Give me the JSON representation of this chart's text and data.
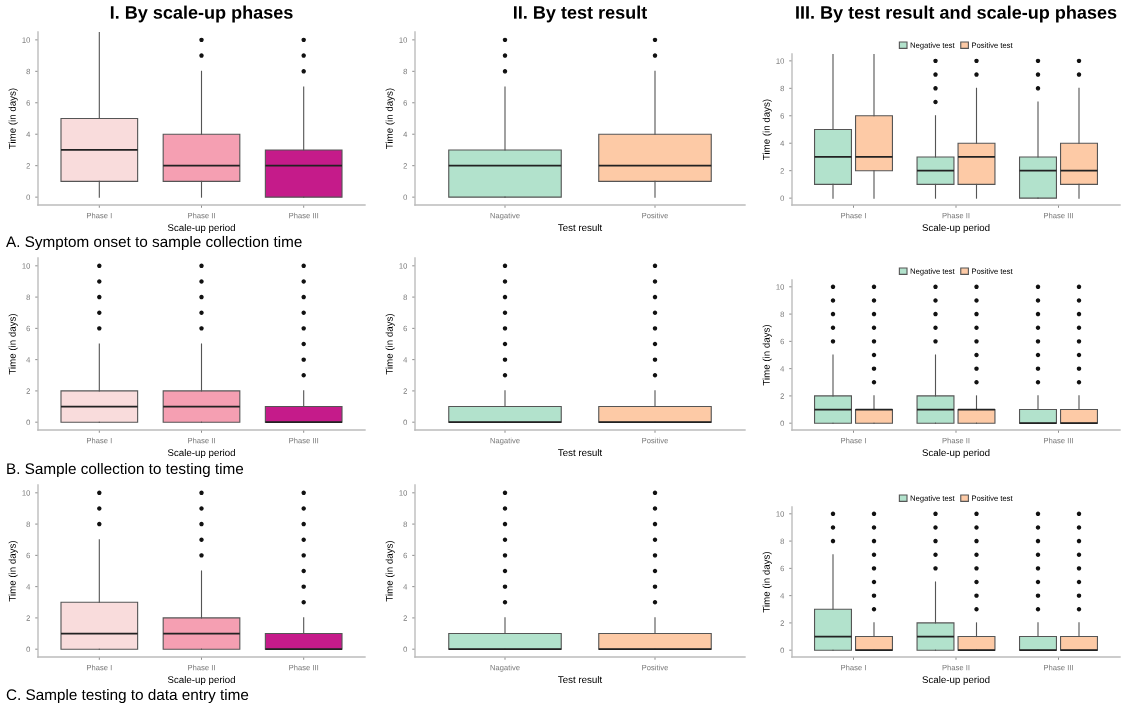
{
  "chart_data": [
    {
      "type": "box",
      "title": "I. By scale-up phases",
      "xlabel": "Scale-up period",
      "ylabel": "Time (in days)",
      "annotations": [
        "A. Symptom onset to sample collection time"
      ],
      "categories": [
        "Phase I",
        "Phase II",
        "Phase III"
      ],
      "colors": [
        "#f9dcdc",
        "#f59fb2",
        "#c51b8a"
      ],
      "ylim": [
        -0.5,
        10.5
      ],
      "yticks": [
        0,
        2,
        4,
        6,
        8,
        10
      ],
      "grid": false,
      "legend": false,
      "boxes": [
        {
          "low": 0,
          "q1": 1,
          "median": 3,
          "q3": 5,
          "high": 10.5
        },
        {
          "low": 0,
          "q1": 1,
          "median": 2,
          "q3": 4,
          "high": 8,
          "outliers": [
            9,
            10
          ]
        },
        {
          "low": 0,
          "q1": 0,
          "median": 2,
          "q3": 3,
          "high": 7,
          "outliers": [
            8,
            9,
            10
          ]
        }
      ]
    },
    {
      "type": "box",
      "title": "II. By test result",
      "xlabel": "Test result",
      "ylabel": "Time (in days)",
      "categories": [
        "Nagative",
        "Positive"
      ],
      "colors": [
        "#b2e2cc",
        "#fdcaa6"
      ],
      "ylim": [
        -0.5,
        10.5
      ],
      "yticks": [
        0,
        2,
        4,
        6,
        8,
        10
      ],
      "grid": false,
      "legend": false,
      "boxes": [
        {
          "low": 0,
          "q1": 0,
          "median": 2,
          "q3": 3,
          "high": 7,
          "outliers": [
            8,
            9,
            10
          ]
        },
        {
          "low": 0,
          "q1": 1,
          "median": 2,
          "q3": 4,
          "high": 8,
          "outliers": [
            9,
            10
          ]
        }
      ]
    },
    {
      "type": "box",
      "title": "III. By test result and scale-up phases",
      "xlabel": "Scale-up period",
      "ylabel": "Time (in days)",
      "categories": [
        "Phase I",
        "Phase II",
        "Phase III"
      ],
      "ylim": [
        -0.5,
        10.5
      ],
      "yticks": [
        0,
        2,
        4,
        6,
        8,
        10
      ],
      "grid": false,
      "legend": "top",
      "series": [
        {
          "name": "Negative test",
          "color": "#b2e2cc",
          "boxes": [
            {
              "low": 0,
              "q1": 1,
              "median": 3,
              "q3": 5,
              "high": 10.5
            },
            {
              "low": 0,
              "q1": 1,
              "median": 2,
              "q3": 3,
              "high": 6,
              "outliers": [
                7,
                8,
                9,
                10
              ]
            },
            {
              "low": 0,
              "q1": 0,
              "median": 2,
              "q3": 3,
              "high": 7,
              "outliers": [
                8,
                9,
                10
              ]
            }
          ]
        },
        {
          "name": "Positive test",
          "color": "#fdcaa6",
          "boxes": [
            {
              "low": 0,
              "q1": 2,
              "median": 3,
              "q3": 6,
              "high": 10.5
            },
            {
              "low": 0,
              "q1": 1,
              "median": 3,
              "q3": 4,
              "high": 8,
              "outliers": [
                9,
                10
              ]
            },
            {
              "low": 0,
              "q1": 1,
              "median": 2,
              "q3": 4,
              "high": 8,
              "outliers": [
                9,
                10
              ]
            }
          ]
        }
      ]
    },
    {
      "type": "box",
      "xlabel": "Scale-up period",
      "ylabel": "Time (in days)",
      "annotations": [
        "B. Sample collection to testing time"
      ],
      "categories": [
        "Phase I",
        "Phase II",
        "Phase III"
      ],
      "colors": [
        "#f9dcdc",
        "#f59fb2",
        "#c51b8a"
      ],
      "ylim": [
        -0.5,
        10.5
      ],
      "yticks": [
        0,
        2,
        4,
        6,
        8,
        10
      ],
      "grid": false,
      "legend": false,
      "boxes": [
        {
          "low": 0,
          "q1": 0,
          "median": 1,
          "q3": 2,
          "high": 5,
          "outliers": [
            6,
            7,
            8,
            9,
            10
          ]
        },
        {
          "low": 0,
          "q1": 0,
          "median": 1,
          "q3": 2,
          "high": 5,
          "outliers": [
            6,
            7,
            8,
            9,
            10
          ]
        },
        {
          "low": 0,
          "q1": 0,
          "median": 0,
          "q3": 1,
          "high": 2,
          "outliers": [
            3,
            4,
            5,
            6,
            7,
            8,
            9,
            10
          ]
        }
      ]
    },
    {
      "type": "box",
      "xlabel": "Test result",
      "ylabel": "Time (in days)",
      "categories": [
        "Nagative",
        "Positive"
      ],
      "colors": [
        "#b2e2cc",
        "#fdcaa6"
      ],
      "ylim": [
        -0.5,
        10.5
      ],
      "yticks": [
        0,
        2,
        4,
        6,
        8,
        10
      ],
      "grid": false,
      "legend": false,
      "boxes": [
        {
          "low": 0,
          "q1": 0,
          "median": 0,
          "q3": 1,
          "high": 2,
          "outliers": [
            3,
            4,
            5,
            6,
            7,
            8,
            9,
            10
          ]
        },
        {
          "low": 0,
          "q1": 0,
          "median": 0,
          "q3": 1,
          "high": 2,
          "outliers": [
            3,
            4,
            5,
            6,
            7,
            8,
            9,
            10
          ]
        }
      ]
    },
    {
      "type": "box",
      "xlabel": "Scale-up period",
      "ylabel": "Time (in days)",
      "categories": [
        "Phase I",
        "Phase II",
        "Phase III"
      ],
      "ylim": [
        -0.5,
        10.5
      ],
      "yticks": [
        0,
        2,
        4,
        6,
        8,
        10
      ],
      "grid": false,
      "legend": "top",
      "series": [
        {
          "name": "Negative test",
          "color": "#b2e2cc",
          "boxes": [
            {
              "low": 0,
              "q1": 0,
              "median": 1,
              "q3": 2,
              "high": 5,
              "outliers": [
                6,
                7,
                8,
                9,
                10
              ]
            },
            {
              "low": 0,
              "q1": 0,
              "median": 1,
              "q3": 2,
              "high": 5,
              "outliers": [
                6,
                7,
                8,
                9,
                10
              ]
            },
            {
              "low": 0,
              "q1": 0,
              "median": 0,
              "q3": 1,
              "high": 2,
              "outliers": [
                3,
                4,
                5,
                6,
                7,
                8,
                9,
                10
              ]
            }
          ]
        },
        {
          "name": "Positive test",
          "color": "#fdcaa6",
          "boxes": [
            {
              "low": 0,
              "q1": 0,
              "median": 1,
              "q3": 1,
              "high": 2,
              "outliers": [
                3,
                4,
                5,
                6,
                7,
                8,
                9,
                10
              ]
            },
            {
              "low": 0,
              "q1": 0,
              "median": 1,
              "q3": 1,
              "high": 2,
              "outliers": [
                3,
                4,
                5,
                6,
                7,
                8,
                9,
                10
              ]
            },
            {
              "low": 0,
              "q1": 0,
              "median": 0,
              "q3": 1,
              "high": 2,
              "outliers": [
                3,
                4,
                5,
                6,
                7,
                8,
                9,
                10
              ]
            }
          ]
        }
      ]
    },
    {
      "type": "box",
      "xlabel": "Scale-up period",
      "ylabel": "Time (in days)",
      "annotations": [
        "C. Sample testing to data entry time"
      ],
      "categories": [
        "Phase I",
        "Phase II",
        "Phase III"
      ],
      "colors": [
        "#f9dcdc",
        "#f59fb2",
        "#c51b8a"
      ],
      "ylim": [
        -0.5,
        10.5
      ],
      "yticks": [
        0,
        2,
        4,
        6,
        8,
        10
      ],
      "grid": false,
      "legend": false,
      "boxes": [
        {
          "low": 0,
          "q1": 0,
          "median": 1,
          "q3": 3,
          "high": 7,
          "outliers": [
            8,
            9,
            10
          ]
        },
        {
          "low": 0,
          "q1": 0,
          "median": 1,
          "q3": 2,
          "high": 5,
          "outliers": [
            6,
            7,
            8,
            9,
            10
          ]
        },
        {
          "low": 0,
          "q1": 0,
          "median": 0,
          "q3": 1,
          "high": 2,
          "outliers": [
            3,
            4,
            5,
            6,
            7,
            8,
            9,
            10
          ]
        }
      ]
    },
    {
      "type": "box",
      "xlabel": "Test result",
      "ylabel": "Time (in days)",
      "categories": [
        "Nagative",
        "Positive"
      ],
      "colors": [
        "#b2e2cc",
        "#fdcaa6"
      ],
      "ylim": [
        -0.5,
        10.5
      ],
      "yticks": [
        0,
        2,
        4,
        6,
        8,
        10
      ],
      "grid": false,
      "legend": false,
      "boxes": [
        {
          "low": 0,
          "q1": 0,
          "median": 0,
          "q3": 1,
          "high": 2,
          "outliers": [
            3,
            4,
            5,
            6,
            7,
            8,
            9,
            10
          ]
        },
        {
          "low": 0,
          "q1": 0,
          "median": 0,
          "q3": 1,
          "high": 2,
          "outliers": [
            3,
            4,
            5,
            6,
            7,
            8,
            9,
            10
          ]
        }
      ]
    },
    {
      "type": "box",
      "xlabel": "Scale-up period",
      "ylabel": "Time (in days)",
      "categories": [
        "Phase I",
        "Phase II",
        "Phase III"
      ],
      "ylim": [
        -0.5,
        10.5
      ],
      "yticks": [
        0,
        2,
        4,
        6,
        8,
        10
      ],
      "grid": false,
      "legend": "top",
      "series": [
        {
          "name": "Negative test",
          "color": "#b2e2cc",
          "boxes": [
            {
              "low": 0,
              "q1": 0,
              "median": 1,
              "q3": 3,
              "high": 7,
              "outliers": [
                8,
                9,
                10
              ]
            },
            {
              "low": 0,
              "q1": 0,
              "median": 1,
              "q3": 2,
              "high": 5,
              "outliers": [
                6,
                7,
                8,
                9,
                10
              ]
            },
            {
              "low": 0,
              "q1": 0,
              "median": 0,
              "q3": 1,
              "high": 2,
              "outliers": [
                3,
                4,
                5,
                6,
                7,
                8,
                9,
                10
              ]
            }
          ]
        },
        {
          "name": "Positive test",
          "color": "#fdcaa6",
          "boxes": [
            {
              "low": 0,
              "q1": 0,
              "median": 0,
              "q3": 1,
              "high": 2,
              "outliers": [
                3,
                4,
                5,
                6,
                7,
                8,
                9,
                10
              ]
            },
            {
              "low": 0,
              "q1": 0,
              "median": 0,
              "q3": 1,
              "high": 2,
              "outliers": [
                3,
                4,
                5,
                6,
                7,
                8,
                9,
                10
              ]
            },
            {
              "low": 0,
              "q1": 0,
              "median": 0,
              "q3": 1,
              "high": 2,
              "outliers": [
                3,
                4,
                5,
                6,
                7,
                8,
                9,
                10
              ]
            }
          ]
        }
      ]
    }
  ]
}
